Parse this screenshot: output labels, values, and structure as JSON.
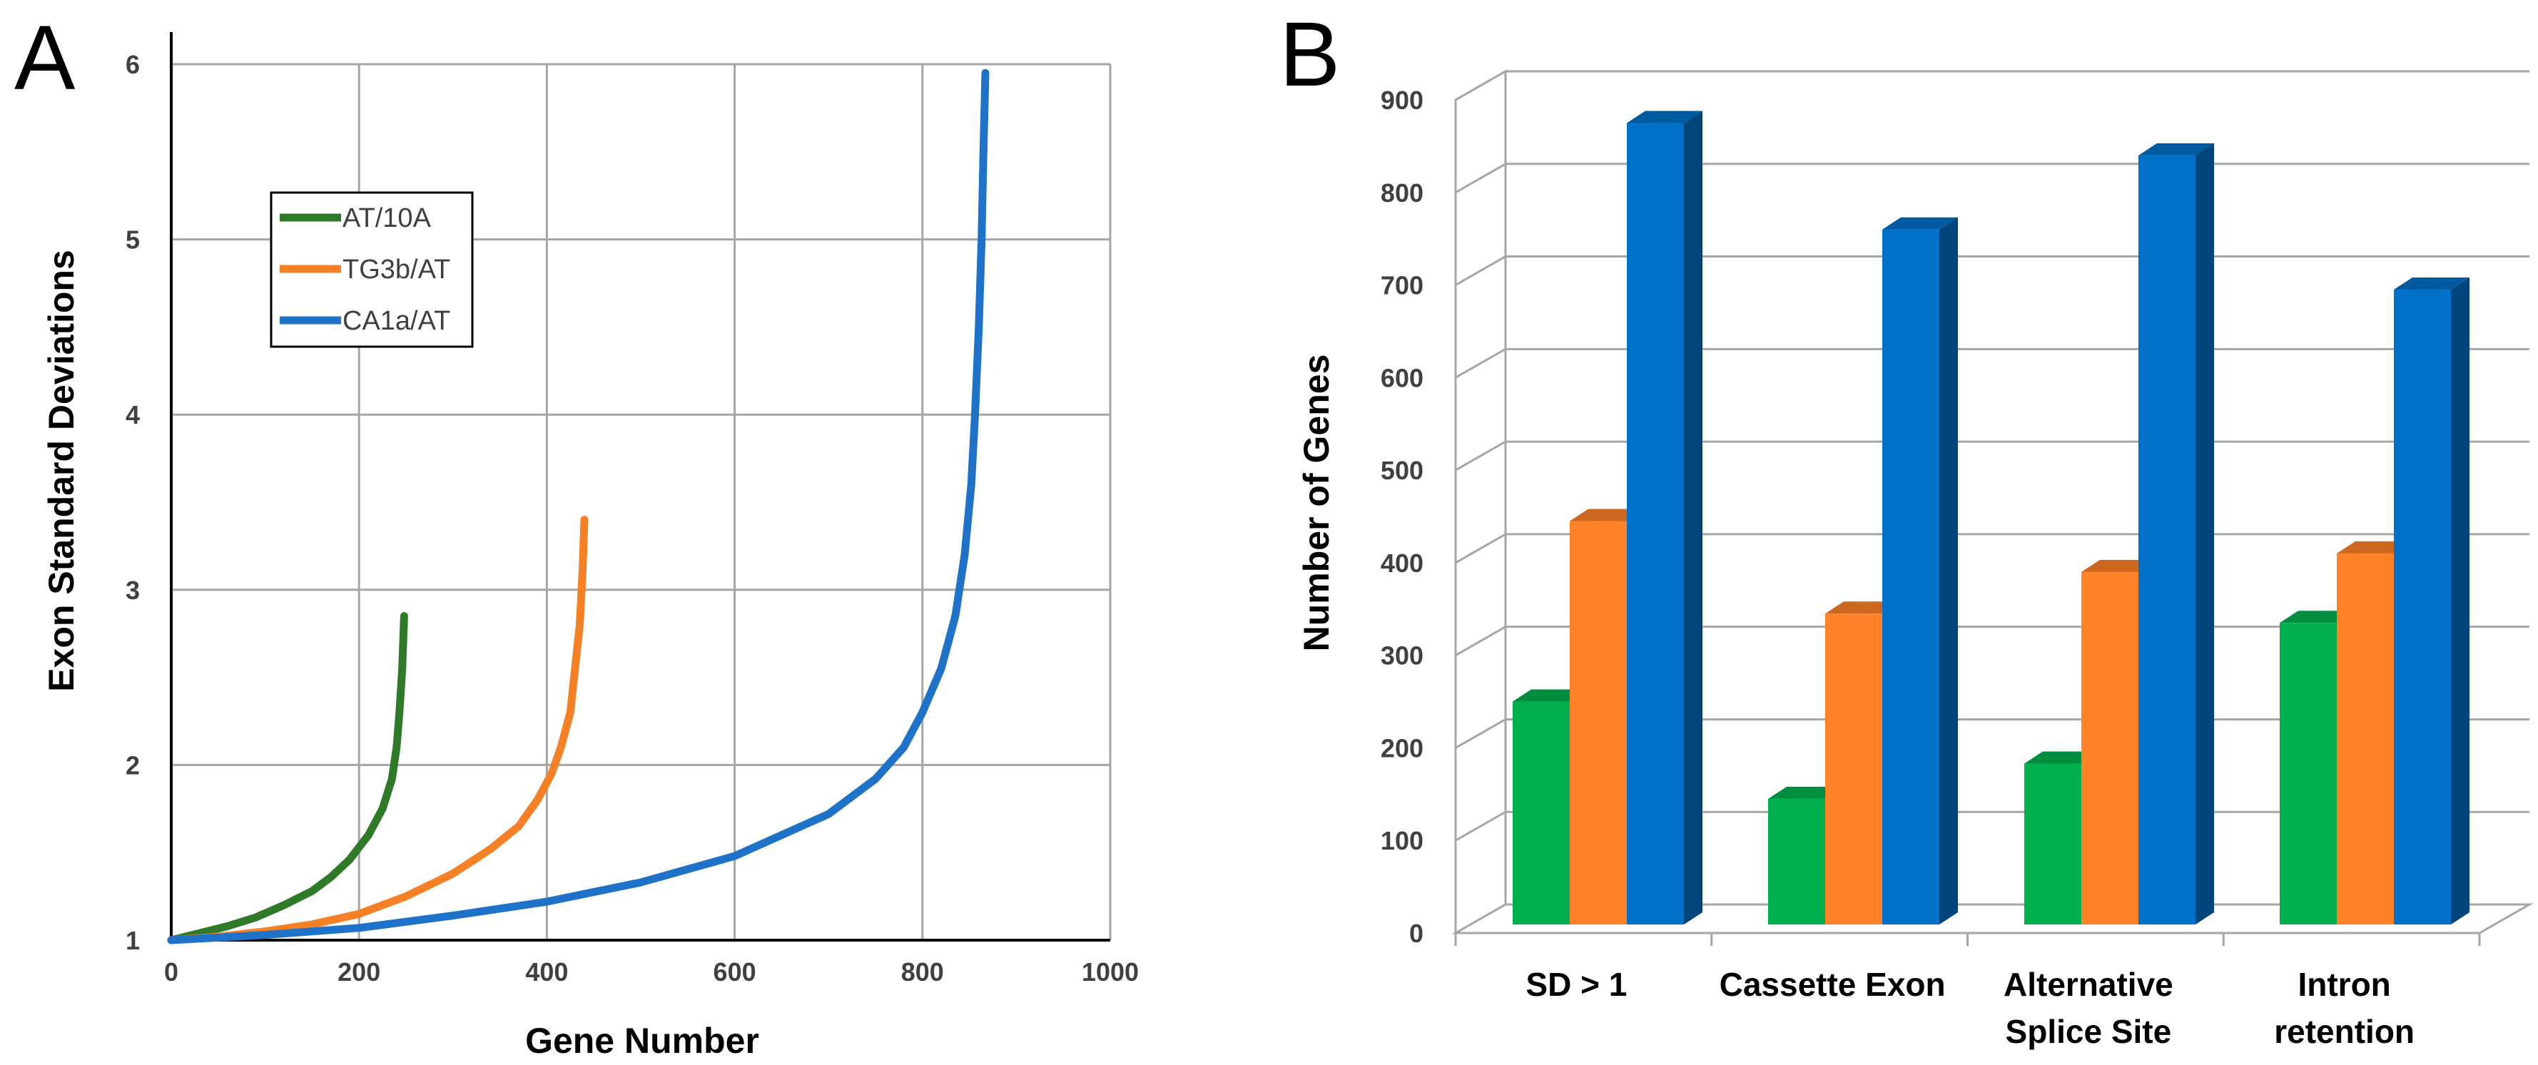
{
  "chart_data": [
    {
      "type": "line",
      "panel_label": "A",
      "title": "",
      "xlabel": "Gene Number",
      "ylabel": "Exon Standard Deviations",
      "xlim": [
        0,
        1000
      ],
      "ylim": [
        1,
        6
      ],
      "xticks": [
        "0",
        "200",
        "400",
        "600",
        "800",
        "1000"
      ],
      "yticks": [
        "1",
        "2",
        "3",
        "4",
        "5",
        "6"
      ],
      "grid": true,
      "legend_position": "upper-left",
      "series": [
        {
          "name": "AT/10A",
          "color": "#2f7a28",
          "x": [
            0,
            30,
            60,
            90,
            120,
            150,
            170,
            190,
            210,
            225,
            235,
            240,
            243,
            246,
            248
          ],
          "y": [
            1,
            1.04,
            1.08,
            1.13,
            1.2,
            1.28,
            1.36,
            1.46,
            1.6,
            1.75,
            1.92,
            2.1,
            2.3,
            2.55,
            2.85
          ]
        },
        {
          "name": "TG3b/AT",
          "color": "#f58025",
          "x": [
            0,
            50,
            100,
            150,
            200,
            250,
            300,
            340,
            370,
            390,
            405,
            415,
            425,
            430,
            435,
            438,
            440
          ],
          "y": [
            1,
            1.02,
            1.05,
            1.09,
            1.15,
            1.25,
            1.38,
            1.52,
            1.65,
            1.8,
            1.95,
            2.1,
            2.3,
            2.55,
            2.8,
            3.1,
            3.4
          ]
        },
        {
          "name": "CA1a/AT",
          "color": "#1e72c8",
          "x": [
            0,
            100,
            200,
            300,
            400,
            500,
            600,
            700,
            750,
            780,
            800,
            820,
            835,
            845,
            852,
            856,
            860,
            863,
            865,
            867
          ],
          "y": [
            1,
            1.03,
            1.07,
            1.14,
            1.22,
            1.33,
            1.48,
            1.72,
            1.92,
            2.1,
            2.3,
            2.55,
            2.85,
            3.2,
            3.6,
            4,
            4.5,
            5,
            5.5,
            5.95
          ]
        }
      ]
    },
    {
      "type": "bar",
      "panel_label": "B",
      "title": "",
      "xlabel": "",
      "ylabel": "Number of Genes",
      "ylim": [
        0,
        900
      ],
      "yticks": [
        "0",
        "100",
        "200",
        "300",
        "400",
        "500",
        "600",
        "700",
        "800",
        "900"
      ],
      "grid": true,
      "categories": [
        [
          "SD > 1"
        ],
        [
          "Cassette Exon"
        ],
        [
          "Alternative",
          "Splice Site"
        ],
        [
          "Intron",
          "retention"
        ]
      ],
      "series": [
        {
          "name": "AT/10A",
          "color": "#00b04f",
          "values": [
            250,
            145,
            183,
            335
          ]
        },
        {
          "name": "TG3b/AT",
          "color": "#ff8128",
          "values": [
            445,
            345,
            390,
            410
          ]
        },
        {
          "name": "CA1a/AT",
          "color": "#0070c8",
          "values": [
            875,
            760,
            840,
            695
          ]
        }
      ]
    }
  ]
}
